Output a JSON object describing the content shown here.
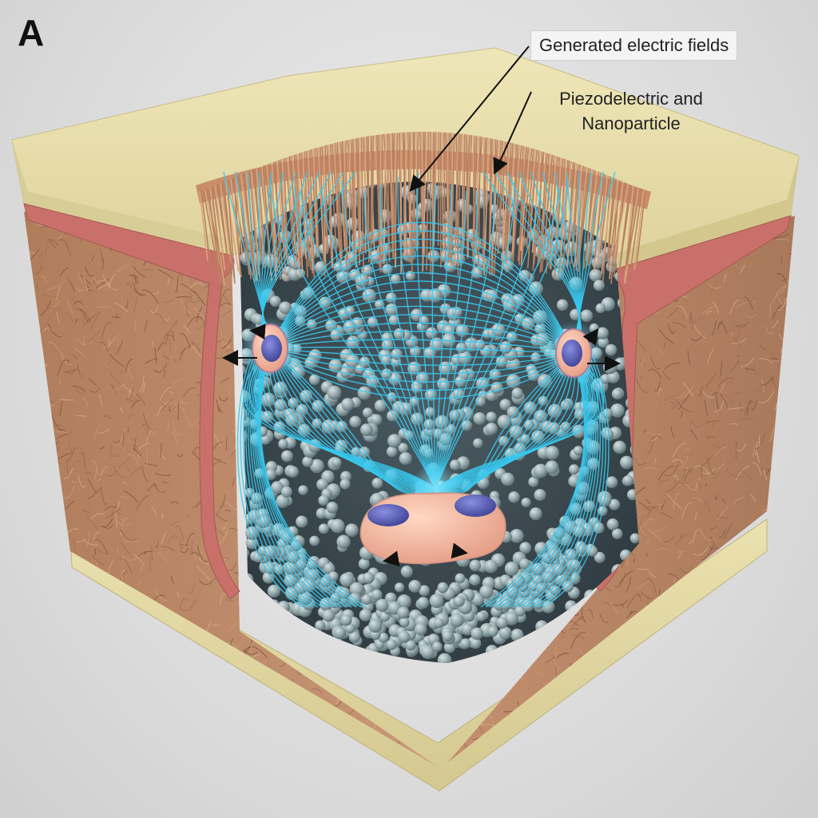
{
  "panel": {
    "letter": "A"
  },
  "labels": {
    "electric_fields": "Generated electric fields",
    "piezo_line1": "Piezodelectric and",
    "piezo_line2": "Nanoparticle"
  },
  "colors": {
    "background": "#dcdcdc",
    "matrix_top": "#e6dcaa",
    "fiber_tissue": "#b98a6a",
    "membrane": "#c9706a",
    "nanoparticle": "#8fa3a6",
    "field_lines": "#37c8ee",
    "cell_body": "#f2b9a0",
    "cell_nucleus": "#5a5fb8"
  },
  "icons": [
    "arrow-icon",
    "cell-icon",
    "nanoparticle-icon"
  ]
}
